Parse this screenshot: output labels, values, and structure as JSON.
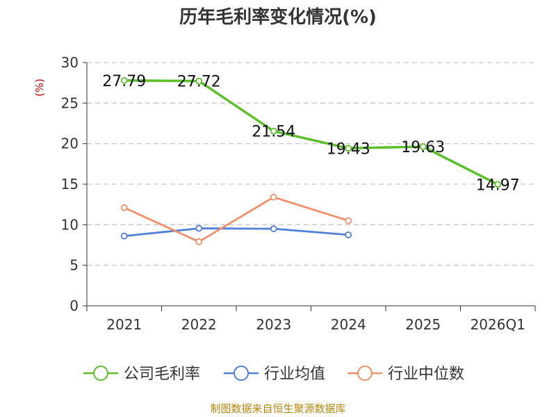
{
  "chart_data": {
    "type": "line",
    "title": "历年毛利率变化情况(%)",
    "ylabel": "(%)",
    "categories": [
      "2021",
      "2022",
      "2023",
      "2024",
      "2025",
      "2026Q1"
    ],
    "ylim": [
      0,
      30
    ],
    "yticks": [
      0,
      5,
      10,
      15,
      20,
      25,
      30
    ],
    "grid": true,
    "legend_position": "bottom",
    "series": [
      {
        "name": "公司毛利率",
        "color": "#5cbf2a",
        "values": [
          27.79,
          27.72,
          21.54,
          19.43,
          19.63,
          14.97
        ],
        "labels": [
          "27.79",
          "27.72",
          "21.54",
          "19.43",
          "19.63",
          "14.97"
        ]
      },
      {
        "name": "行业均值",
        "color": "#4f7fd6",
        "values": [
          8.6,
          9.55,
          9.5,
          8.75,
          null,
          null
        ]
      },
      {
        "name": "行业中位数",
        "color": "#f0906a",
        "values": [
          12.1,
          7.9,
          13.4,
          10.5,
          null,
          null
        ]
      }
    ]
  },
  "source": "制图数据来自恒生聚源数据库"
}
